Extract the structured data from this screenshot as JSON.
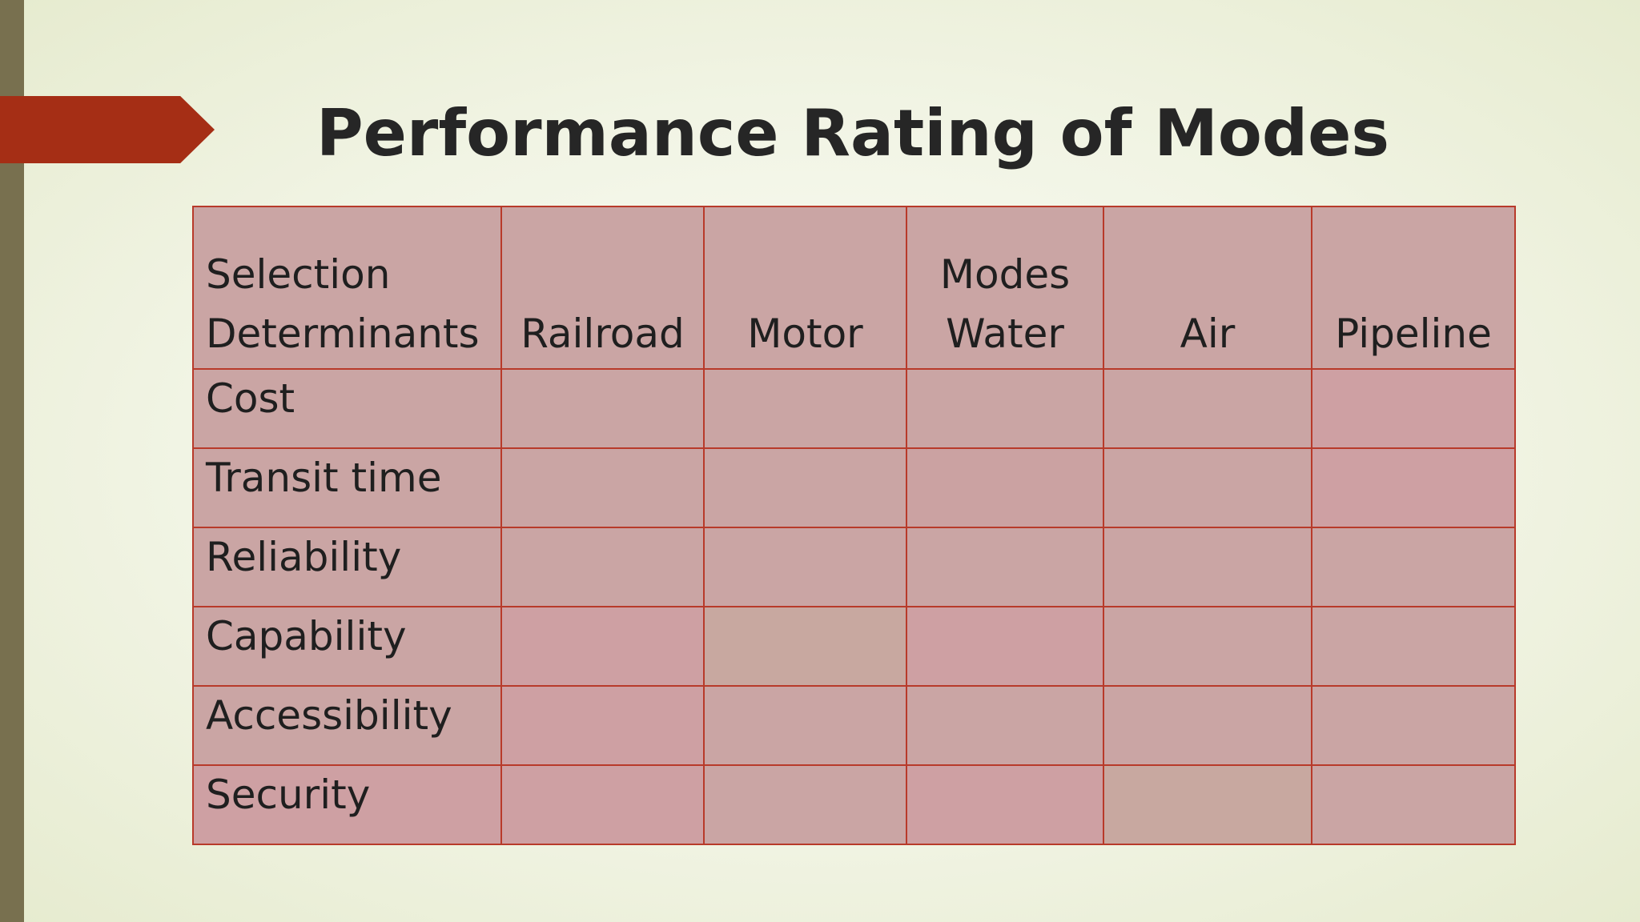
{
  "slide": {
    "title": "Performance Rating of Modes"
  },
  "table": {
    "header": {
      "determinants_line1": "Selection",
      "determinants_line2": "Determinants",
      "railroad": "Railroad",
      "motor": "Motor",
      "water_line1": "Modes",
      "water_line2": "Water",
      "air": "Air",
      "pipeline": "Pipeline"
    },
    "rows": [
      {
        "label": "Cost",
        "values": [
          "",
          "",
          "",
          "",
          ""
        ]
      },
      {
        "label": "Transit time",
        "values": [
          "",
          "",
          "",
          "",
          ""
        ]
      },
      {
        "label": "Reliability",
        "values": [
          "",
          "",
          "",
          "",
          ""
        ]
      },
      {
        "label": "Capability",
        "values": [
          "",
          "",
          "",
          "",
          ""
        ]
      },
      {
        "label": "Accessibility",
        "values": [
          "",
          "",
          "",
          "",
          ""
        ]
      },
      {
        "label": "Security",
        "values": [
          "",
          "",
          "",
          "",
          ""
        ]
      }
    ]
  },
  "colors": {
    "accent_bar": "#78704f",
    "title_arrow": "#a52e15",
    "table_border": "#b83a2a",
    "table_fill": "#caa5a4"
  }
}
